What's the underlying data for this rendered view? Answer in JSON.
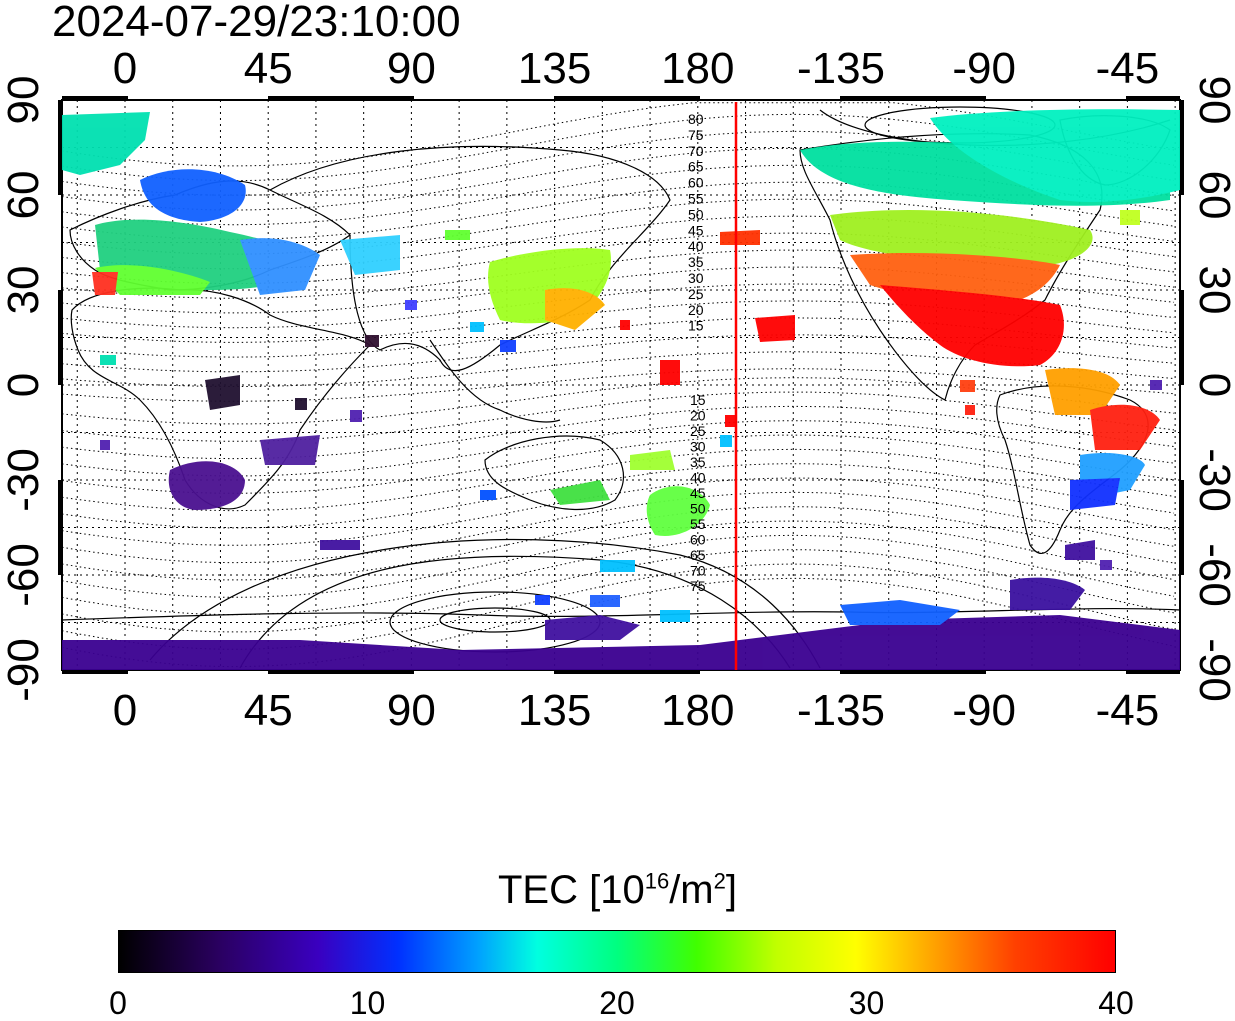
{
  "timestamp": "2024-07-29/23:10:00",
  "map": {
    "top_lon_labels": [
      "0",
      "45",
      "90",
      "135",
      "180",
      "-135",
      "-90",
      "-45"
    ],
    "bottom_lon_labels": [
      "0",
      "45",
      "90",
      "135",
      "180",
      "-135",
      "-90",
      "-45"
    ],
    "left_lat_labels": [
      "90",
      "60",
      "30",
      "0",
      "-30",
      "-60",
      "-90"
    ],
    "right_lat_labels": [
      "90",
      "60",
      "30",
      "0",
      "-30",
      "-60",
      "-90"
    ],
    "north_contour_labels": [
      "80",
      "75",
      "70",
      "65",
      "60",
      "55",
      "50",
      "45",
      "40",
      "35",
      "30",
      "25",
      "20",
      "15"
    ],
    "south_contour_labels": [
      "15",
      "20",
      "25",
      "30",
      "35",
      "40",
      "45",
      "50",
      "55",
      "60",
      "65",
      "70",
      "75"
    ],
    "terminator_color": "#ff0000",
    "terminator_lon": -170
  },
  "colorbar": {
    "title_main": "TEC  [10",
    "title_sup1": "16",
    "title_mid": "/m",
    "title_sup2": "2",
    "title_end": "]",
    "ticks": [
      "0",
      "10",
      "20",
      "30",
      "40"
    ],
    "range": [
      0,
      40
    ],
    "colors": [
      "#000000",
      "#3a00c0",
      "#0030ff",
      "#00ffe0",
      "#40ff00",
      "#ffff00",
      "#ff0000"
    ]
  }
}
